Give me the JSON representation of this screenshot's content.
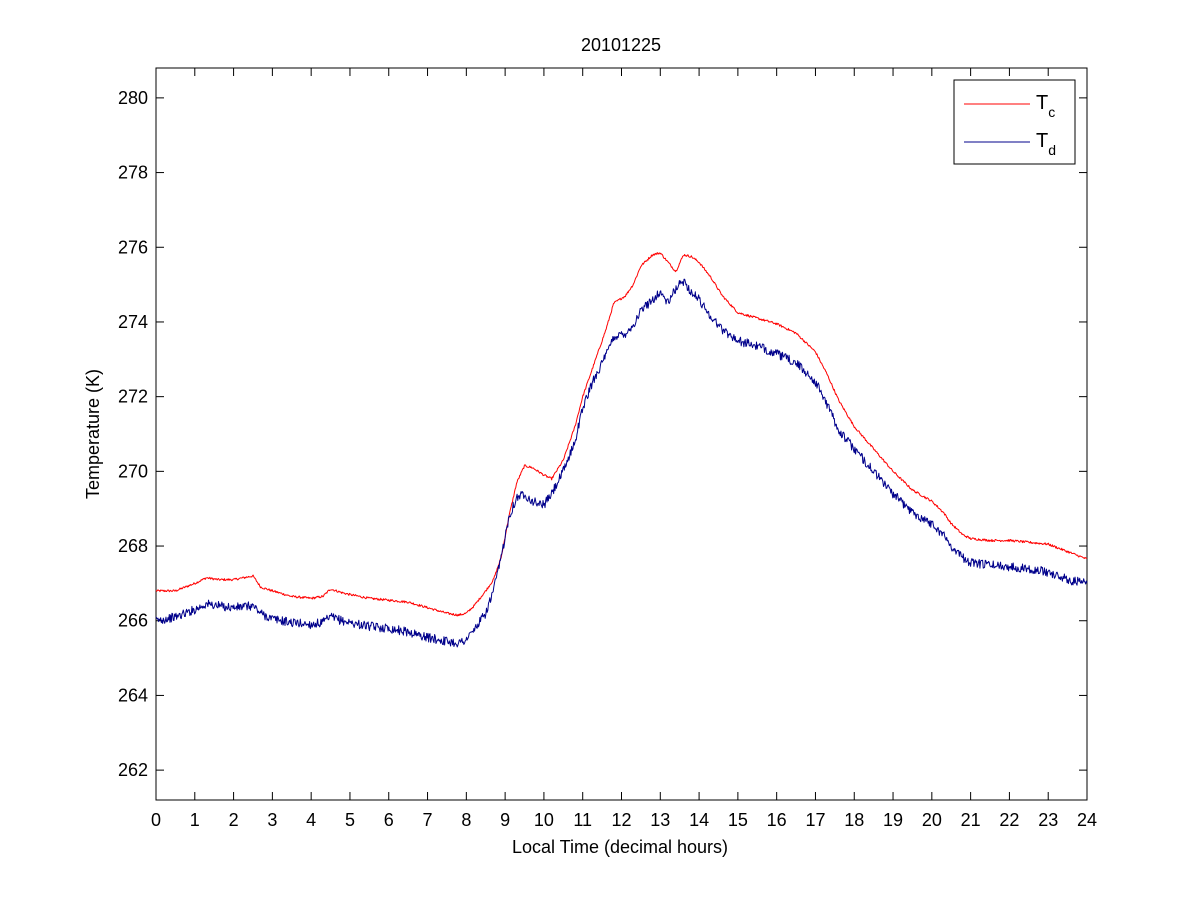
{
  "chart_data": {
    "type": "line",
    "title": "20101225",
    "xlabel": "Local Time (decimal hours)",
    "ylabel": "Temperature (K)",
    "xlim": [
      0,
      24
    ],
    "ylim": [
      261.2,
      280.8
    ],
    "xticks": [
      0,
      1,
      2,
      3,
      4,
      5,
      6,
      7,
      8,
      9,
      10,
      11,
      12,
      13,
      14,
      15,
      16,
      17,
      18,
      19,
      20,
      21,
      22,
      23,
      24
    ],
    "xtick_labels": [
      "0",
      "1",
      "2",
      "3",
      "4",
      "5",
      "6",
      "7",
      "8",
      "9",
      "10",
      "11",
      "12",
      "13",
      "14",
      "15",
      "16",
      "17",
      "18",
      "19",
      "20",
      "21",
      "22",
      "23",
      "24"
    ],
    "yticks": [
      262,
      264,
      266,
      268,
      270,
      272,
      274,
      276,
      278,
      280
    ],
    "ytick_labels": [
      "262",
      "264",
      "266",
      "268",
      "270",
      "272",
      "274",
      "276",
      "278",
      "280"
    ],
    "grid": false,
    "legend_position": "top-right",
    "series": [
      {
        "name": "Tc",
        "legend_main": "T",
        "legend_sub": "c",
        "color": "#ff0000",
        "noise": 0.03,
        "x": [
          0,
          0.5,
          1.0,
          1.3,
          1.6,
          2.0,
          2.5,
          2.7,
          3.0,
          3.5,
          4.0,
          4.3,
          4.5,
          4.8,
          5.0,
          5.5,
          6.0,
          6.5,
          7.0,
          7.5,
          7.8,
          8.0,
          8.2,
          8.5,
          8.7,
          8.9,
          9.1,
          9.3,
          9.5,
          9.7,
          10.0,
          10.2,
          10.5,
          10.8,
          11.0,
          11.3,
          11.6,
          11.8,
          12.1,
          12.3,
          12.5,
          12.8,
          13.0,
          13.2,
          13.4,
          13.6,
          13.8,
          14.0,
          14.3,
          14.6,
          15.0,
          15.5,
          16.0,
          16.5,
          17.0,
          17.3,
          17.6,
          18.0,
          18.5,
          19.0,
          19.5,
          20.0,
          20.3,
          20.5,
          20.8,
          21.0,
          21.5,
          22.0,
          22.5,
          23.0,
          23.5,
          24.0
        ],
        "y": [
          266.8,
          266.8,
          267.0,
          267.15,
          267.1,
          267.1,
          267.2,
          266.9,
          266.8,
          266.65,
          266.6,
          266.65,
          266.85,
          266.75,
          266.7,
          266.6,
          266.55,
          266.5,
          266.35,
          266.2,
          266.15,
          266.2,
          266.4,
          266.8,
          267.1,
          267.7,
          268.8,
          269.7,
          270.15,
          270.1,
          269.9,
          269.8,
          270.3,
          271.2,
          272.0,
          272.9,
          273.8,
          274.5,
          274.7,
          275.0,
          275.5,
          275.8,
          275.85,
          275.6,
          275.35,
          275.8,
          275.75,
          275.6,
          275.2,
          274.7,
          274.25,
          274.1,
          273.95,
          273.7,
          273.2,
          272.6,
          271.9,
          271.2,
          270.6,
          270.0,
          269.5,
          269.2,
          268.9,
          268.6,
          268.3,
          268.2,
          268.15,
          268.15,
          268.1,
          268.05,
          267.85,
          267.65
        ]
      },
      {
        "name": "Td",
        "legend_main": "T",
        "legend_sub": "d",
        "color": "#00008b",
        "noise": 0.12,
        "x": [
          0,
          0.5,
          1.0,
          1.3,
          1.6,
          2.0,
          2.5,
          2.7,
          3.0,
          3.5,
          4.0,
          4.3,
          4.5,
          4.8,
          5.0,
          5.5,
          6.0,
          6.5,
          7.0,
          7.5,
          7.8,
          8.0,
          8.2,
          8.5,
          8.7,
          8.9,
          9.1,
          9.3,
          9.5,
          9.7,
          10.0,
          10.2,
          10.5,
          10.8,
          11.0,
          11.3,
          11.6,
          11.8,
          12.1,
          12.3,
          12.5,
          12.8,
          13.0,
          13.2,
          13.4,
          13.6,
          13.8,
          14.0,
          14.3,
          14.6,
          15.0,
          15.5,
          16.0,
          16.5,
          17.0,
          17.3,
          17.6,
          18.0,
          18.5,
          19.0,
          19.5,
          20.0,
          20.3,
          20.5,
          20.8,
          21.0,
          21.5,
          22.0,
          22.5,
          23.0,
          23.5,
          24.0
        ],
        "y": [
          266.0,
          266.1,
          266.3,
          266.45,
          266.4,
          266.35,
          266.4,
          266.2,
          266.05,
          265.95,
          265.9,
          265.95,
          266.1,
          266.0,
          265.95,
          265.85,
          265.8,
          265.7,
          265.55,
          265.45,
          265.4,
          265.5,
          265.75,
          266.2,
          266.8,
          267.7,
          268.8,
          269.3,
          269.4,
          269.2,
          269.1,
          269.4,
          270.0,
          270.8,
          271.7,
          272.5,
          273.1,
          273.6,
          273.7,
          273.9,
          274.3,
          274.6,
          274.8,
          274.5,
          274.9,
          275.1,
          274.8,
          274.6,
          274.15,
          273.8,
          273.5,
          273.35,
          273.15,
          272.9,
          272.4,
          271.8,
          271.1,
          270.6,
          270.0,
          269.4,
          268.9,
          268.6,
          268.3,
          268.0,
          267.7,
          267.55,
          267.5,
          267.45,
          267.4,
          267.3,
          267.1,
          267.0
        ]
      }
    ]
  }
}
